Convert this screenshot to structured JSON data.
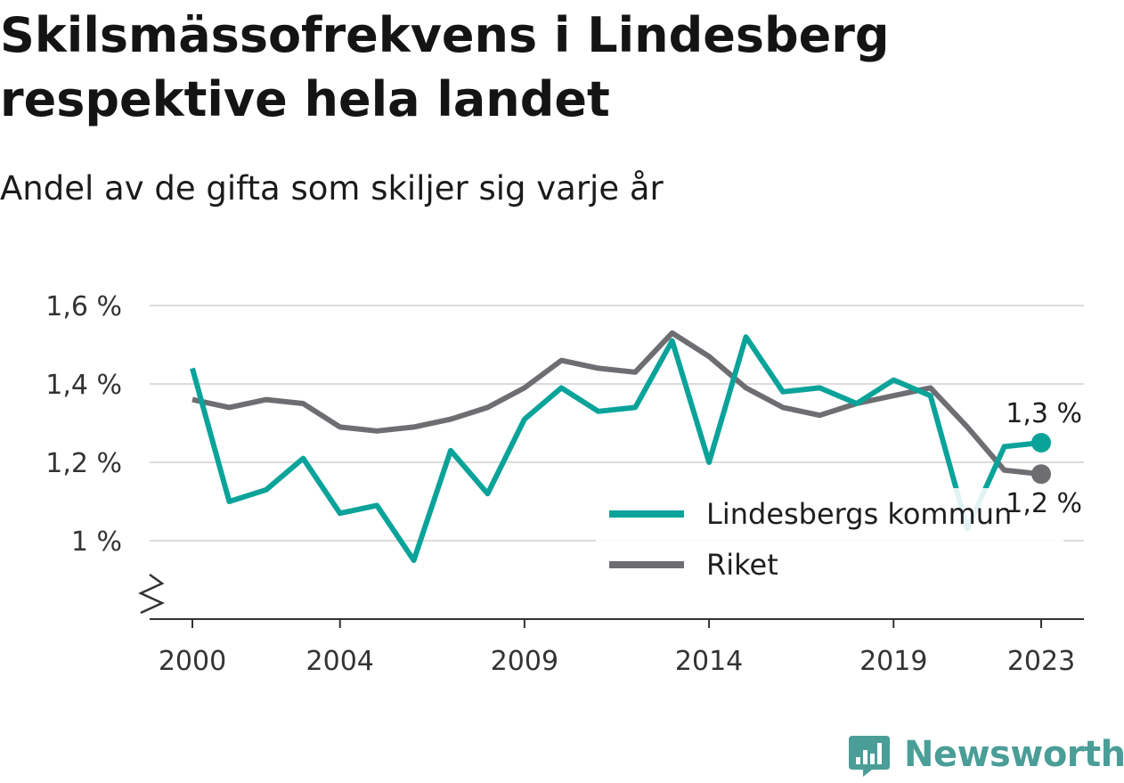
{
  "title": "Skilsmässofrekvens i Lindesberg respektive hela landet",
  "subtitle": "Andel av de gifta som skiljer sig varje år",
  "brand": {
    "name": "Newsworthy",
    "color": "#4a9e97",
    "icon": "newsworthy-logo-icon"
  },
  "chart_data": {
    "type": "line",
    "x": [
      2000,
      2001,
      2002,
      2003,
      2004,
      2005,
      2006,
      2007,
      2008,
      2009,
      2010,
      2011,
      2012,
      2013,
      2014,
      2015,
      2016,
      2017,
      2018,
      2019,
      2020,
      2021,
      2022,
      2023
    ],
    "x_tick_values": [
      2000,
      2004,
      2009,
      2014,
      2019,
      2023
    ],
    "x_tick_labels": [
      "2000",
      "2004",
      "2009",
      "2014",
      "2019",
      "2023"
    ],
    "ylim": [
      0.8,
      1.6
    ],
    "y_tick_values": [
      1.0,
      1.2,
      1.4,
      1.6
    ],
    "y_tick_labels": [
      "1 %",
      "1,2 %",
      "1,4 %",
      "1,6 %"
    ],
    "y_axis_break": true,
    "grid": true,
    "legend_position": "bottom-right",
    "series": [
      {
        "name": "Lindesbergs kommun",
        "color": "#0aa39a",
        "values": [
          1.44,
          1.1,
          1.13,
          1.21,
          1.07,
          1.09,
          0.95,
          1.23,
          1.12,
          1.31,
          1.39,
          1.33,
          1.34,
          1.51,
          1.2,
          1.52,
          1.38,
          1.39,
          1.35,
          1.41,
          1.37,
          1.03,
          1.24,
          1.25
        ],
        "end_label": "1,3 %"
      },
      {
        "name": "Riket",
        "color": "#6e6d72",
        "values": [
          1.36,
          1.34,
          1.36,
          1.35,
          1.29,
          1.28,
          1.29,
          1.31,
          1.34,
          1.39,
          1.46,
          1.44,
          1.43,
          1.53,
          1.47,
          1.39,
          1.34,
          1.32,
          1.35,
          1.37,
          1.39,
          1.29,
          1.18,
          1.17
        ],
        "end_label": "1,2 %"
      }
    ]
  }
}
